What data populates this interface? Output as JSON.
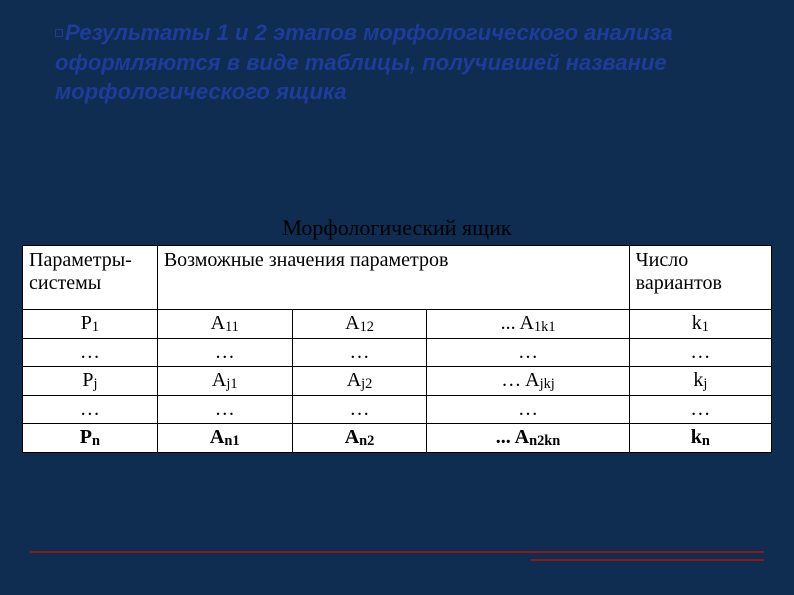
{
  "heading": {
    "text": "Результаты 1 и 2 этапов морфологического анализа оформляются в виде таблицы, получившей название морфологического ящика",
    "color": "#1e3c9a",
    "font_size": 22,
    "italic": true,
    "bold": true
  },
  "background_color": "#0e2d50",
  "accent_color": "#8a1a1a",
  "table": {
    "title": "Морфологический ящик",
    "title_fontsize": 22,
    "font_family": "Times New Roman",
    "cell_fontsize": 20,
    "border_color": "#000000",
    "background": "#ffffff",
    "col_widths_pct": [
      18,
      18,
      18,
      27,
      19
    ],
    "columns": [
      {
        "label": "Параметры-\nсистемы",
        "align": "left"
      },
      {
        "label": "Возможные значения параметров",
        "colspan": 3,
        "align": "left"
      },
      {
        "label": "Число вариантов",
        "align": "left"
      }
    ],
    "rows": [
      [
        {
          "base": "P",
          "sub": "1"
        },
        {
          "base": "A",
          "sub": "11"
        },
        {
          "base": "A",
          "sub": "12"
        },
        {
          "prefix": "... ",
          "base": "A",
          "sub": "1k1"
        },
        {
          "base": "k",
          "sub": "1"
        }
      ],
      [
        {
          "text": "…"
        },
        {
          "text": "…"
        },
        {
          "text": "…"
        },
        {
          "text": "…"
        },
        {
          "text": "…"
        }
      ],
      [
        {
          "base": "P",
          "sub": "j"
        },
        {
          "base": "A",
          "sub": "j1"
        },
        {
          "base": "A",
          "sub": "j2"
        },
        {
          "prefix": "… ",
          "base": "A",
          "sub": "jkj"
        },
        {
          "base": "k",
          "sub": "j"
        }
      ],
      [
        {
          "text": "…"
        },
        {
          "text": "…"
        },
        {
          "text": "…"
        },
        {
          "text": "…"
        },
        {
          "text": "…"
        }
      ],
      [
        {
          "base": "P",
          "sub": "n",
          "bold": true
        },
        {
          "base": "A",
          "sub": "n1",
          "bold": true
        },
        {
          "base": "A",
          "sub": "n2",
          "bold": true
        },
        {
          "prefix": "... ",
          "base": "A",
          "sub": "n2kn",
          "bold": true
        },
        {
          "base": "k",
          "sub": "n",
          "bold": true
        }
      ]
    ]
  }
}
